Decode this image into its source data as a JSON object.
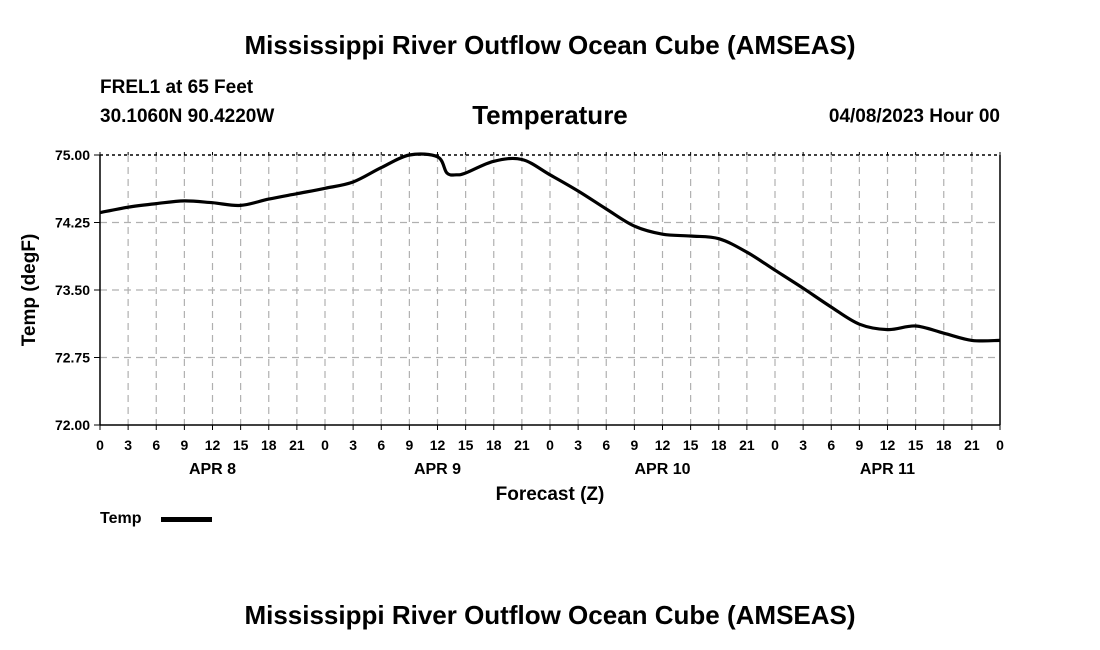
{
  "page": {
    "title_top": "Mississippi River Outflow Ocean Cube (AMSEAS)",
    "title_bottom": "Mississippi River Outflow Ocean Cube (AMSEAS)",
    "station": "FREL1 at 65 Feet",
    "coords": "30.1060N  90.4220W",
    "issued": "04/08/2023 Hour 00"
  },
  "legend": {
    "label": "Temp"
  },
  "colors": {
    "line": "#000000",
    "grid": "#b0b0b0",
    "axis": "#000000"
  },
  "chart_data": {
    "type": "line",
    "title": "Temperature",
    "xlabel": "Forecast (Z)",
    "ylabel": "Temp (degF)",
    "ylim": [
      72.0,
      75.0
    ],
    "yticks": [
      "72.00",
      "72.75",
      "73.50",
      "74.25",
      "75.00"
    ],
    "xlim": [
      0,
      96
    ],
    "x_tick_step_hours": 3,
    "x_tick_labels": [
      "0",
      "3",
      "6",
      "9",
      "12",
      "15",
      "18",
      "21",
      "0",
      "3",
      "6",
      "9",
      "12",
      "15",
      "18",
      "21",
      "0",
      "3",
      "6",
      "9",
      "12",
      "15",
      "18",
      "21",
      "0",
      "3",
      "6",
      "9",
      "12",
      "15",
      "18",
      "21",
      "0"
    ],
    "day_labels": [
      {
        "label": "APR 8",
        "hour": 12
      },
      {
        "label": "APR 9",
        "hour": 36
      },
      {
        "label": "APR 10",
        "hour": 60
      },
      {
        "label": "APR 11",
        "hour": 84
      }
    ],
    "grid": true,
    "series": [
      {
        "name": "Temp",
        "x": [
          0,
          3,
          6,
          9,
          12,
          15,
          18,
          21,
          24,
          27,
          30,
          33,
          36,
          37,
          38,
          39,
          42,
          45,
          48,
          51,
          54,
          57,
          60,
          63,
          66,
          69,
          72,
          75,
          78,
          81,
          84,
          87,
          90,
          93,
          96
        ],
        "values": [
          74.36,
          74.42,
          74.46,
          74.49,
          74.47,
          74.44,
          74.51,
          74.57,
          74.63,
          74.7,
          74.86,
          75.0,
          74.98,
          74.8,
          74.78,
          74.8,
          74.93,
          74.95,
          74.78,
          74.6,
          74.4,
          74.21,
          74.12,
          74.1,
          74.07,
          73.92,
          73.72,
          73.52,
          73.31,
          73.12,
          73.06,
          73.1,
          73.02,
          72.94,
          72.94
        ]
      }
    ]
  }
}
